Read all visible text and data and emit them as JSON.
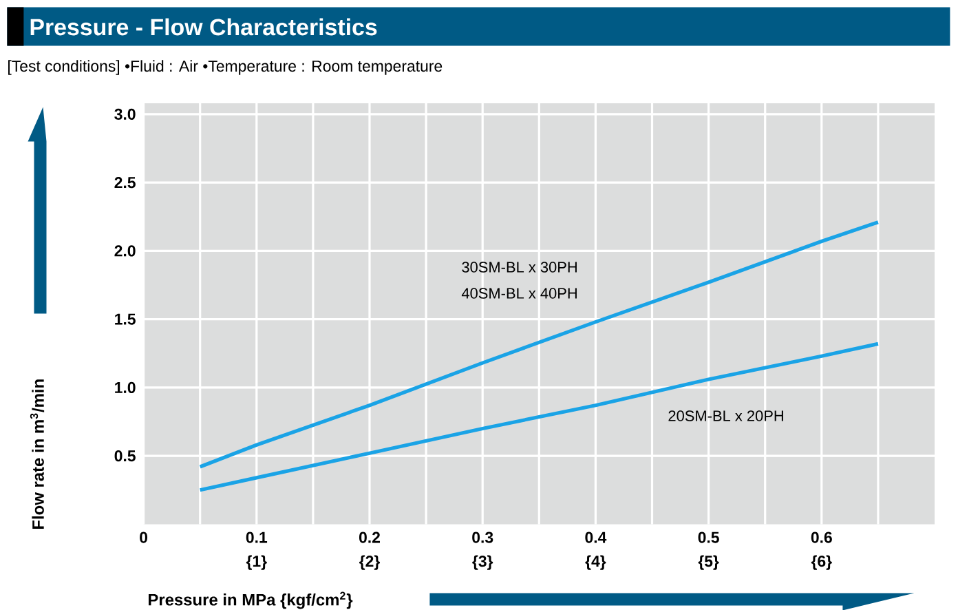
{
  "chart_data": {
    "type": "line",
    "title": "Pressure - Flow Characteristics",
    "subtitle": "[Test conditions]   •Fluid : Air   •Temperature : Room temperature",
    "xlabel": "Pressure in MPa {kgf/cm$^{2}$}",
    "ylabel": "Flow rate in m$^{3}$/min",
    "x": [
      0.05,
      0.1,
      0.2,
      0.3,
      0.4,
      0.5,
      0.6,
      0.65
    ],
    "series": [
      {
        "color": "#1aa3e6",
        "values": [
          0.42,
          0.58,
          0.87,
          1.18,
          1.48,
          1.77,
          2.07,
          2.21
        ]
      },
      {
        "color": "#1aa3e6",
        "values": [
          0.25,
          0.34,
          0.52,
          0.7,
          0.87,
          1.06,
          1.23,
          1.32
        ]
      }
    ],
    "annotations": [
      "30SM-BL x 30PH",
      "40SM-BL x 40PH",
      "20SM-BL x 20PH"
    ],
    "xlim": [
      0,
      0.7
    ],
    "ylim": [
      0,
      3.08
    ],
    "xticks": [
      0,
      {
        "value": 0.05,
        "label": null
      },
      0.1,
      {
        "value": 0.15,
        "label": null
      },
      0.2,
      {
        "value": 0.25,
        "label": null
      },
      0.3,
      {
        "value": 0.35,
        "label": null
      },
      0.4,
      {
        "value": 0.45,
        "label": null
      },
      0.5,
      {
        "value": 0.55,
        "label": null
      },
      0.6,
      {
        "value": 0.65,
        "label": null
      }
    ],
    "x2lim": [
      0,
      7
    ],
    "x2ticks": [
      {
        "value": 1,
        "label": "{1}"
      },
      {
        "value": 2,
        "label": "{2}"
      },
      {
        "value": 3,
        "label": "{3}"
      },
      {
        "value": 4,
        "label": "{4}"
      },
      {
        "value": 5,
        "label": "{5}"
      },
      {
        "value": 6,
        "label": "{6}"
      }
    ],
    "yticks": [
      0.5,
      {
        "value": 1.0,
        "label": "1.0"
      },
      1.5,
      {
        "value": 2.0,
        "label": "2.0"
      },
      2.5,
      {
        "value": 3.0,
        "label": "3.0"
      }
    ],
    "grid": true
  }
}
